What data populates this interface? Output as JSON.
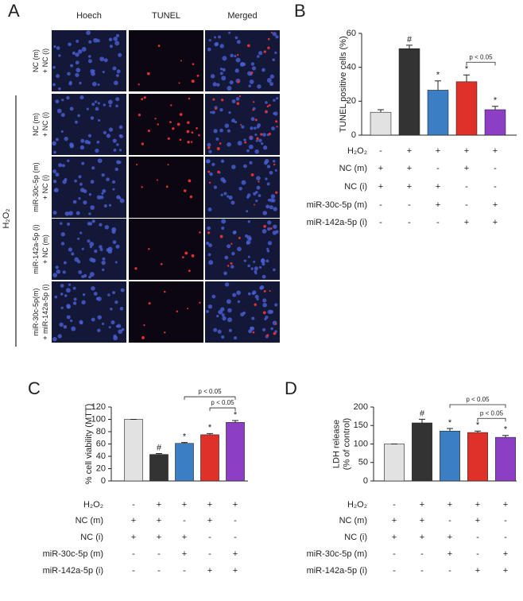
{
  "panel_a": {
    "letter": "A",
    "columns": [
      "Hoech",
      "TUNEL",
      "Merged"
    ],
    "rows": [
      [
        "NC (m)",
        "+ NC (i)"
      ],
      [
        "NC (m)",
        "+ NC (i)"
      ],
      [
        "miR-30c-5p (m)",
        "+ NC (i)"
      ],
      [
        "miR-142a-5p (i)",
        "+ NC (m)"
      ],
      [
        "miR-30c-5p(m)",
        "+ miR-142a-5p (i)"
      ]
    ],
    "group_label": "H₂O₂"
  },
  "chart_data": [
    {
      "type": "bar",
      "letter": "B",
      "ylabel": [
        "TUNEL positive cells (%)"
      ],
      "categories": [
        null,
        null,
        null,
        null,
        null
      ],
      "values": [
        13.5,
        51,
        26.5,
        31.5,
        15
      ],
      "errors": [
        1.5,
        2,
        5.5,
        4,
        2
      ],
      "colors": [
        "#e2e2e2",
        "#333333",
        "#3c7ec4",
        "#e0302a",
        "#8c3ec4"
      ],
      "annotations": [
        null,
        "#",
        "*",
        "*",
        "*"
      ],
      "brackets": [
        {
          "from": 3,
          "to": 4,
          "label": "p < 0.05"
        }
      ],
      "ylim": [
        0,
        60
      ],
      "yticks": [
        0,
        20,
        40,
        60
      ],
      "conditions": [
        {
          "label": "H₂O₂",
          "marks": [
            "-",
            "+",
            "+",
            "+",
            "+"
          ]
        },
        {
          "label": "NC (m)",
          "marks": [
            "+",
            "+",
            "-",
            "+",
            "-"
          ]
        },
        {
          "label": "NC (i)",
          "marks": [
            "+",
            "+",
            "+",
            "-",
            "-"
          ]
        },
        {
          "label": "miR-30c-5p (m)",
          "marks": [
            "-",
            "-",
            "+",
            "-",
            "+"
          ]
        },
        {
          "label": "miR-142a-5p (i)",
          "marks": [
            "-",
            "-",
            "-",
            "+",
            "+"
          ]
        }
      ]
    },
    {
      "type": "bar",
      "letter": "C",
      "ylabel": [
        "% cell viability (MTT)"
      ],
      "categories": [
        null,
        null,
        null,
        null,
        null
      ],
      "values": [
        100,
        43,
        61,
        75,
        95
      ],
      "errors": [
        0,
        1.5,
        1.5,
        2,
        3
      ],
      "colors": [
        "#e2e2e2",
        "#333333",
        "#3c7ec4",
        "#e0302a",
        "#8c3ec4"
      ],
      "annotations": [
        null,
        "#",
        "*",
        "*",
        "*"
      ],
      "brackets": [
        {
          "from": 3,
          "to": 4,
          "label": "p < 0.05"
        },
        {
          "from": 2,
          "to": 4,
          "label": "p < 0.05"
        }
      ],
      "ylim": [
        0,
        120
      ],
      "yticks": [
        0,
        20,
        40,
        60,
        80,
        100,
        120
      ],
      "conditions": [
        {
          "label": "H₂O₂",
          "marks": [
            "-",
            "+",
            "+",
            "+",
            "+"
          ]
        },
        {
          "label": "NC (m)",
          "marks": [
            "+",
            "+",
            "-",
            "+",
            "-"
          ]
        },
        {
          "label": "NC (i)",
          "marks": [
            "+",
            "+",
            "+",
            "-",
            "-"
          ]
        },
        {
          "label": "miR-30c-5p (m)",
          "marks": [
            "-",
            "-",
            "+",
            "-",
            "+"
          ]
        },
        {
          "label": "miR-142a-5p (i)",
          "marks": [
            "-",
            "-",
            "-",
            "+",
            "+"
          ]
        }
      ]
    },
    {
      "type": "bar",
      "letter": "D",
      "ylabel": [
        "LDH release",
        "(% of  control)"
      ],
      "categories": [
        null,
        null,
        null,
        null,
        null
      ],
      "values": [
        100,
        157,
        135,
        131,
        118
      ],
      "errors": [
        0,
        10,
        7,
        4,
        5
      ],
      "colors": [
        "#e2e2e2",
        "#333333",
        "#3c7ec4",
        "#e0302a",
        "#8c3ec4"
      ],
      "annotations": [
        null,
        "#",
        "*",
        "*",
        "*"
      ],
      "brackets": [
        {
          "from": 3,
          "to": 4,
          "label": "p < 0.05"
        },
        {
          "from": 2,
          "to": 4,
          "label": "p < 0.05"
        }
      ],
      "ylim": [
        0,
        200
      ],
      "yticks": [
        0,
        50,
        100,
        150,
        200
      ],
      "conditions": [
        {
          "label": "H₂O₂",
          "marks": [
            "-",
            "+",
            "+",
            "+",
            "+"
          ]
        },
        {
          "label": "NC (m)",
          "marks": [
            "+",
            "+",
            "-",
            "+",
            "-"
          ]
        },
        {
          "label": "NC (i)",
          "marks": [
            "+",
            "+",
            "+",
            "-",
            "-"
          ]
        },
        {
          "label": "miR-30c-5p (m)",
          "marks": [
            "-",
            "-",
            "+",
            "-",
            "+"
          ]
        },
        {
          "label": "miR-142a-5p (i)",
          "marks": [
            "-",
            "-",
            "-",
            "+",
            "+"
          ]
        }
      ]
    }
  ]
}
